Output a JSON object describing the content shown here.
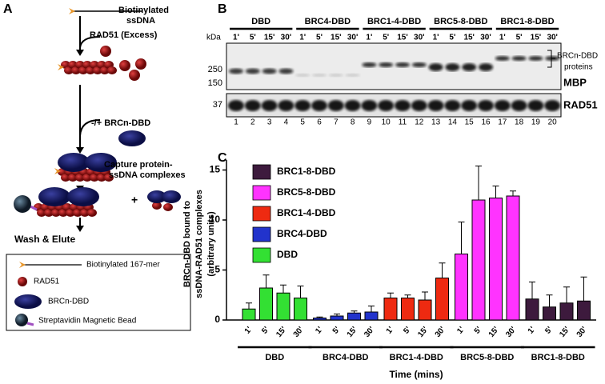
{
  "panel_labels": [
    "A",
    "B",
    "C"
  ],
  "diagram": {
    "ssdna": [
      "Biotinylated",
      "ssDNA"
    ],
    "rad51": "RAD51 (Excess)",
    "brcn": "-/+ BRCn-DBD",
    "capture": [
      "Capture protein-",
      "ssDNA complexes"
    ],
    "plus": "+",
    "wash": "Wash & Elute",
    "legend": [
      "Biotinylated 167-mer",
      "RAD51",
      "BRCn-DBD",
      "Streptavidin Magnetic Bead"
    ]
  },
  "blot": {
    "groups": [
      "DBD",
      "BRC4-DBD",
      "BRC1-4-DBD",
      "BRC5-8-DBD",
      "BRC1-8-DBD"
    ],
    "times": [
      "1'",
      "5'",
      "15'",
      "30'"
    ],
    "kda": "kDa",
    "markers": [
      "250",
      "150",
      "37"
    ],
    "bracket_label": [
      "BRCn-DBD",
      "proteins"
    ],
    "mbp": "MBP",
    "rad51": "RAD51",
    "lanes": [
      1,
      2,
      3,
      4,
      5,
      6,
      7,
      8,
      9,
      10,
      11,
      12,
      13,
      14,
      15,
      16,
      17,
      18,
      19,
      20
    ]
  },
  "chart_data": {
    "type": "bar",
    "ylabel": [
      "BRCn-DBD bound to",
      "ssDNA-RAD51 complexes",
      "(arbitrary units)"
    ],
    "xlabel": "Time (mins)",
    "categories": [
      "1'",
      "5'",
      "15'",
      "30'"
    ],
    "series": [
      {
        "name": "DBD",
        "color": "#33e033",
        "values": [
          1.1,
          3.2,
          2.7,
          2.2
        ],
        "errors": [
          0.6,
          1.3,
          0.8,
          1.2
        ]
      },
      {
        "name": "BRC4-DBD",
        "color": "#2233cc",
        "values": [
          0.2,
          0.4,
          0.7,
          0.8
        ],
        "errors": [
          0.1,
          0.2,
          0.2,
          0.6
        ]
      },
      {
        "name": "BRC1-4-DBD",
        "color": "#ee2a11",
        "values": [
          2.2,
          2.2,
          2.0,
          4.2
        ],
        "errors": [
          0.5,
          0.3,
          0.8,
          1.5
        ]
      },
      {
        "name": "BRC5-8-DBD",
        "color": "#ff33ff",
        "values": [
          6.6,
          12.0,
          12.2,
          12.4
        ],
        "errors": [
          3.2,
          3.4,
          1.2,
          0.5
        ]
      },
      {
        "name": "BRC1-8-DBD",
        "color": "#3d1a3d",
        "values": [
          2.1,
          1.3,
          1.7,
          1.9
        ],
        "errors": [
          1.7,
          1.2,
          1.6,
          2.4
        ]
      }
    ],
    "ylim": [
      0,
      16
    ],
    "yticks": [
      0,
      5,
      10,
      15
    ]
  }
}
